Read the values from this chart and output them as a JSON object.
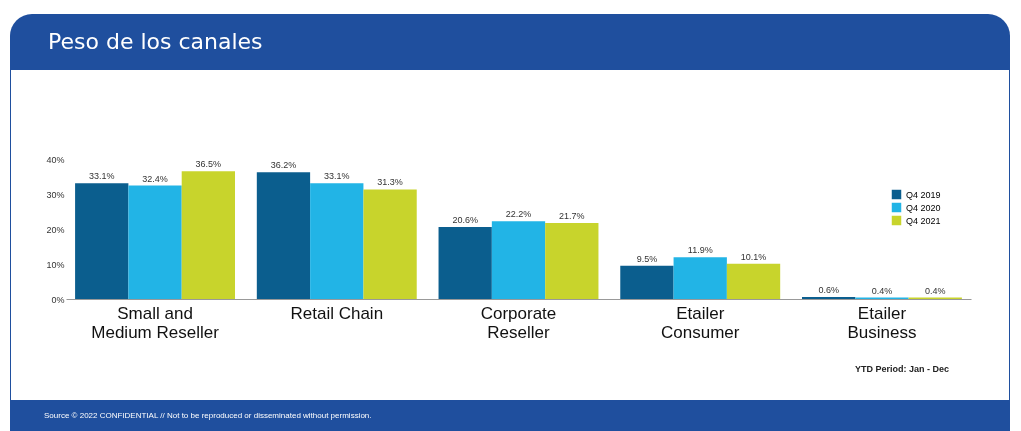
{
  "chart_data": {
    "type": "bar",
    "title": "Peso de los canales",
    "categories": [
      "Small and Medium Reseller",
      "Retail Chain",
      "Corporate Reseller",
      "Etailer Consumer",
      "Etailer Business"
    ],
    "series": [
      {
        "name": "Q4 2019",
        "color": "#0b5e8e",
        "values": [
          33.1,
          36.2,
          20.6,
          9.5,
          0.6
        ],
        "value_labels": [
          "33.1%",
          "36.2%",
          "20.6%",
          "9.5%",
          "0.6%"
        ]
      },
      {
        "name": "Q4 2020",
        "color": "#22b4e6",
        "values": [
          32.4,
          33.1,
          22.2,
          11.9,
          0.4
        ],
        "value_labels": [
          "32.4%",
          "33.1%",
          "22.2%",
          "11.9%",
          "0.4%"
        ]
      },
      {
        "name": "Q4 2021",
        "color": "#c8d42c",
        "values": [
          36.5,
          31.3,
          21.7,
          10.1,
          0.4
        ],
        "value_labels": [
          "36.5%",
          "31.3%",
          "21.7%",
          "10.1%",
          "0.4%"
        ]
      }
    ],
    "ylim": [
      0,
      40
    ],
    "yticks": [
      {
        "value": 0,
        "label": "0%"
      },
      {
        "value": 10,
        "label": "10%"
      },
      {
        "value": 20,
        "label": "20%"
      },
      {
        "value": 30,
        "label": "30%"
      },
      {
        "value": 40,
        "label": "40%"
      }
    ],
    "grid": false,
    "legend": "top right",
    "annotations": [
      "YTD Period: Jan - Dec",
      "Source © 2022 CONFIDENTIAL // Not to be reproduced or disseminated without permission."
    ]
  }
}
